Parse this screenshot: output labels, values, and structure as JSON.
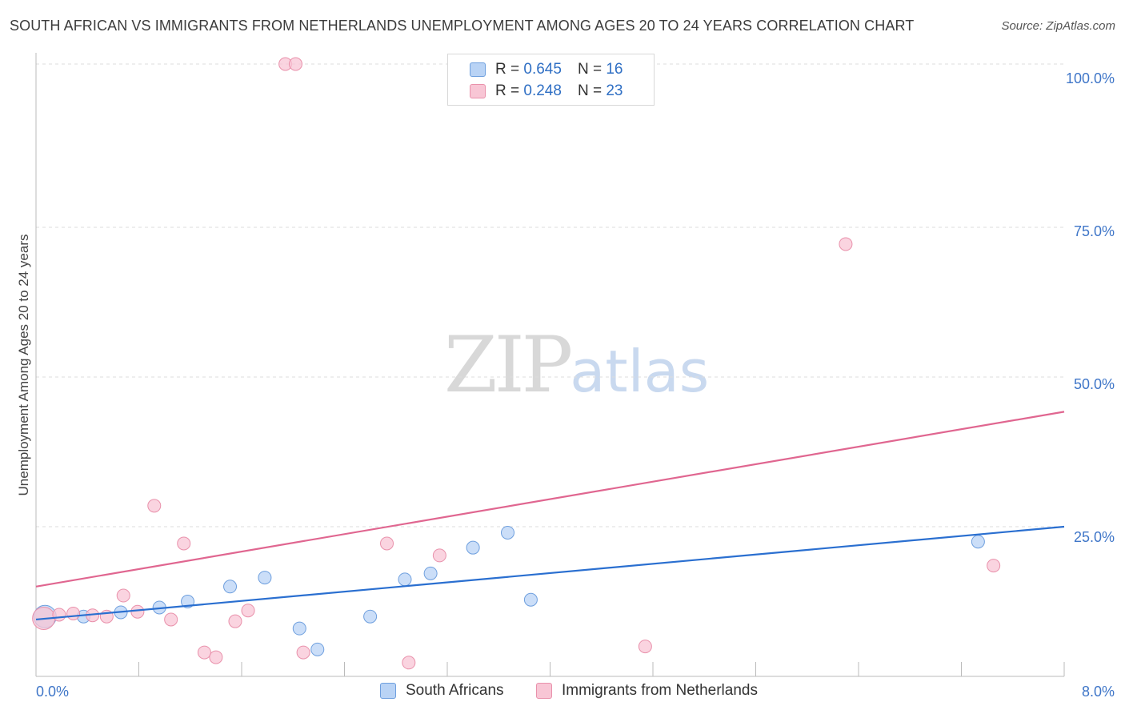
{
  "title": "SOUTH AFRICAN VS IMMIGRANTS FROM NETHERLANDS UNEMPLOYMENT AMONG AGES 20 TO 24 YEARS CORRELATION CHART",
  "source": "Source: ZipAtlas.com",
  "watermark": {
    "zip": "ZIP",
    "atlas": "atlas"
  },
  "legend_top": [
    {
      "r_label": "R =",
      "r_value": "0.645",
      "n_label": "N =",
      "n_value": "16"
    },
    {
      "r_label": "R =",
      "r_value": "0.248",
      "n_label": "N =",
      "n_value": "23"
    }
  ],
  "legend_bottom": [
    "South Africans",
    "Immigrants from Netherlands"
  ],
  "colors": {
    "blue_fill": "#b9d3f5",
    "blue_stroke": "#6e9fde",
    "blue_line": "#2a6fd0",
    "pink_fill": "#f8c6d5",
    "pink_stroke": "#e991ab",
    "pink_line": "#e06690",
    "axis_text": "#3f76c8",
    "grid": "#dddddd"
  },
  "chart_data": {
    "type": "scatter",
    "title": "SOUTH AFRICAN VS IMMIGRANTS FROM NETHERLANDS UNEMPLOYMENT AMONG AGES 20 TO 24 YEARS CORRELATION CHART",
    "xlabel": "",
    "ylabel": "Unemployment Among Ages 20 to 24 years",
    "xlim": [
      0,
      8
    ],
    "ylim": [
      0,
      100
    ],
    "x_tick_labels": [
      "0.0%",
      "8.0%"
    ],
    "y_tick_labels": [
      "100.0%",
      "75.0%",
      "50.0%",
      "25.0%"
    ],
    "y_tick_values": [
      100,
      75,
      50,
      25
    ],
    "series": [
      {
        "name": "South Africans",
        "r": 0.645,
        "n": 16,
        "points": [
          {
            "x": 0.07,
            "y": 10.0,
            "big": true
          },
          {
            "x": 0.37,
            "y": 10.0
          },
          {
            "x": 0.66,
            "y": 10.7
          },
          {
            "x": 0.96,
            "y": 11.5
          },
          {
            "x": 1.18,
            "y": 12.5
          },
          {
            "x": 1.51,
            "y": 15.0
          },
          {
            "x": 1.78,
            "y": 16.5
          },
          {
            "x": 2.05,
            "y": 8.0
          },
          {
            "x": 2.19,
            "y": 4.5
          },
          {
            "x": 2.6,
            "y": 10.0
          },
          {
            "x": 2.87,
            "y": 16.2
          },
          {
            "x": 3.07,
            "y": 17.2
          },
          {
            "x": 3.4,
            "y": 21.5
          },
          {
            "x": 3.67,
            "y": 24.0
          },
          {
            "x": 3.85,
            "y": 12.8
          },
          {
            "x": 7.33,
            "y": 22.5
          }
        ],
        "trend": {
          "x": [
            0,
            8
          ],
          "y": [
            9.5,
            25.0
          ]
        }
      },
      {
        "name": "Immigrants from Netherlands",
        "r": 0.248,
        "n": 23,
        "points": [
          {
            "x": 0.06,
            "y": 9.7,
            "big": true
          },
          {
            "x": 0.18,
            "y": 10.3
          },
          {
            "x": 0.29,
            "y": 10.5
          },
          {
            "x": 0.44,
            "y": 10.2
          },
          {
            "x": 0.55,
            "y": 10.0
          },
          {
            "x": 0.68,
            "y": 13.5
          },
          {
            "x": 0.79,
            "y": 10.8
          },
          {
            "x": 0.92,
            "y": 28.5
          },
          {
            "x": 1.05,
            "y": 9.5
          },
          {
            "x": 1.15,
            "y": 22.2
          },
          {
            "x": 1.31,
            "y": 4.0
          },
          {
            "x": 1.4,
            "y": 3.2
          },
          {
            "x": 1.55,
            "y": 9.2
          },
          {
            "x": 1.65,
            "y": 11.0
          },
          {
            "x": 1.94,
            "y": 100.0
          },
          {
            "x": 2.02,
            "y": 100.0
          },
          {
            "x": 2.08,
            "y": 4.0
          },
          {
            "x": 2.73,
            "y": 22.2
          },
          {
            "x": 2.9,
            "y": 2.3
          },
          {
            "x": 3.14,
            "y": 20.2
          },
          {
            "x": 4.74,
            "y": 5.0
          },
          {
            "x": 6.3,
            "y": 72.2
          },
          {
            "x": 7.45,
            "y": 18.5
          }
        ],
        "trend": {
          "x": [
            0,
            8
          ],
          "y": [
            15.0,
            44.2
          ]
        }
      }
    ]
  }
}
